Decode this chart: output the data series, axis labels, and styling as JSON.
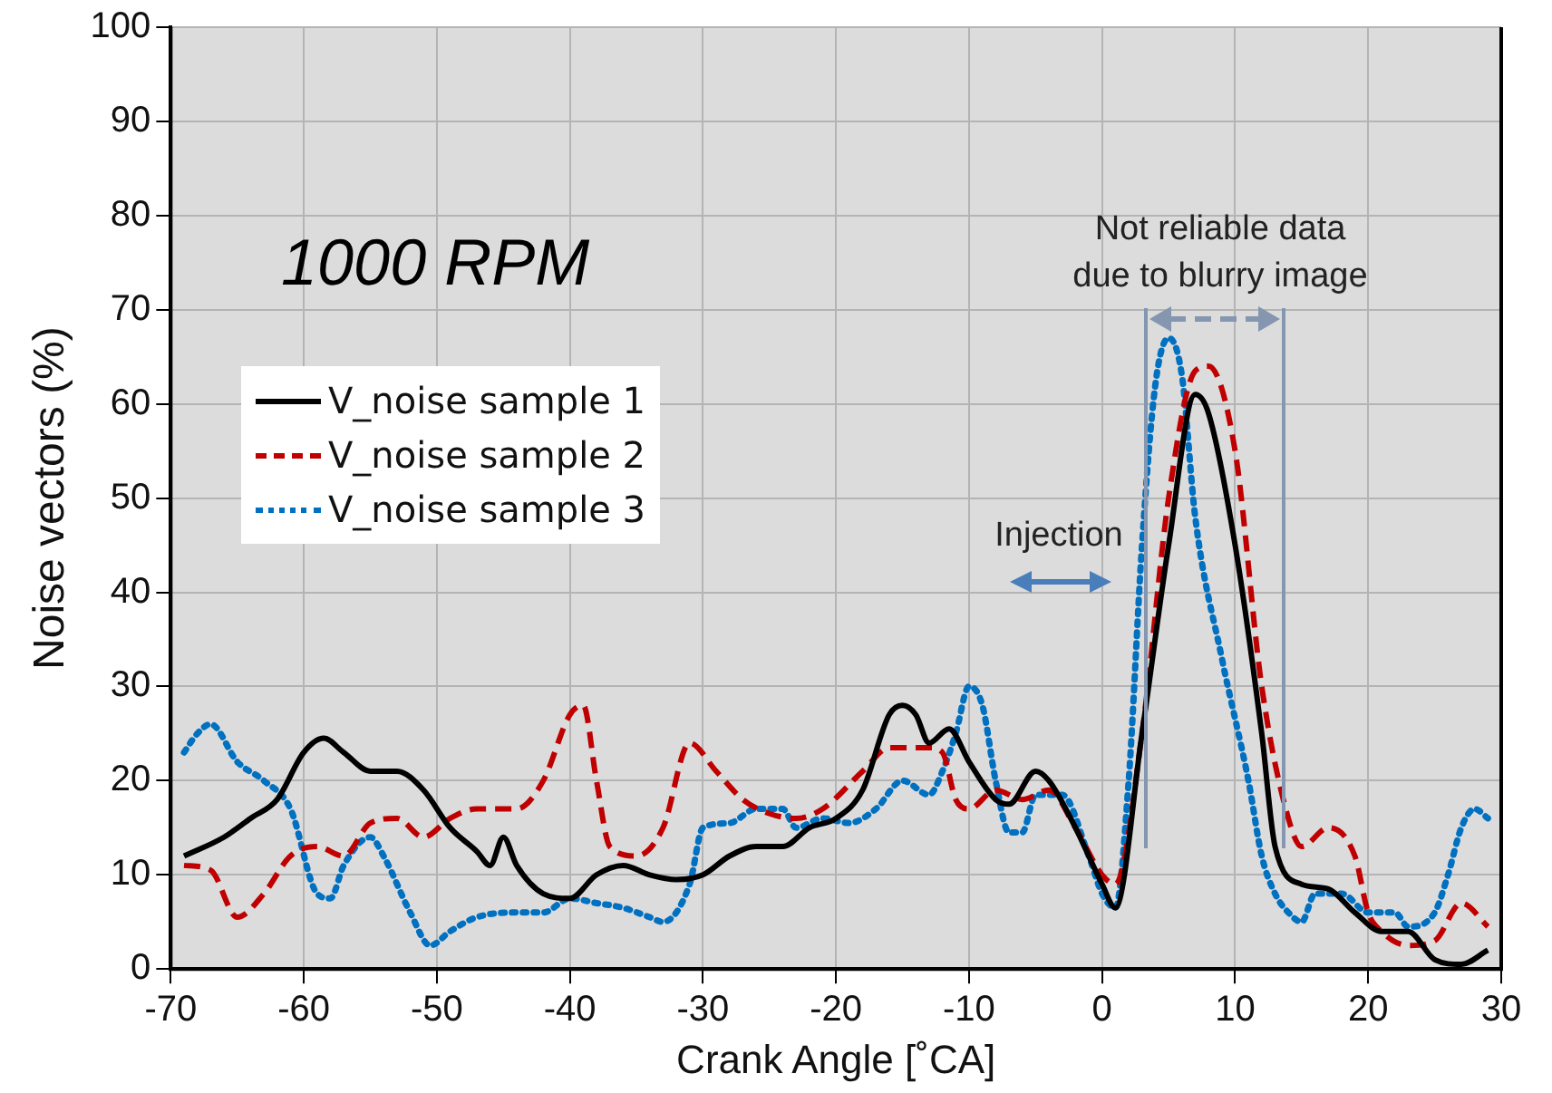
{
  "chart_data": {
    "type": "line",
    "xlabel": "Crank Angle [˚CA]",
    "ylabel": "Noise vectors (%)",
    "xlim": [
      -70,
      30
    ],
    "xticks": [
      -70,
      -60,
      -50,
      -40,
      -30,
      -20,
      -10,
      0,
      10,
      20,
      30
    ],
    "ylim": [
      0,
      100
    ],
    "yticks": [
      0,
      10,
      20,
      30,
      40,
      50,
      60,
      70,
      80,
      90,
      100
    ],
    "grid": true,
    "legend": "left",
    "marker": "none",
    "annotations": [
      "1000 RPM",
      "Injection",
      "Not reliable data\ndue to blurry image"
    ],
    "series": [
      {
        "name": "V_noise sample 1",
        "color": "#000000",
        "line_style": "solid",
        "x": [
          -69,
          -66,
          -64,
          -62,
          -60,
          -58.5,
          -57,
          -55,
          -53,
          -51,
          -49,
          -47,
          -46,
          -45,
          -44,
          -42,
          -40,
          -38,
          -36,
          -34,
          -32,
          -30,
          -28,
          -26,
          -24,
          -22,
          -20,
          -18,
          -16,
          -15,
          -14,
          -13,
          -11.5,
          -10,
          -8,
          -7,
          -5,
          -4,
          -2,
          0,
          1,
          3,
          5,
          7,
          8,
          10,
          12,
          13,
          15,
          17,
          19,
          21,
          23,
          25,
          27,
          29
        ],
        "values": [
          12,
          14,
          16,
          18,
          23,
          24.5,
          23,
          21,
          21,
          19,
          15,
          12.5,
          11,
          14,
          11,
          8,
          7.5,
          10,
          11,
          10,
          9.5,
          10,
          12,
          13,
          13,
          15,
          16,
          19,
          27,
          28,
          27,
          24,
          25.5,
          22,
          18,
          17.5,
          21,
          20,
          15,
          9,
          6.5,
          25,
          45,
          61,
          59,
          45,
          25,
          13,
          9,
          8.5,
          6,
          4,
          4,
          1,
          0.5,
          2
        ]
      },
      {
        "name": "V_noise sample 2",
        "color": "#c00000",
        "line_style": "dashed",
        "x": [
          -69,
          -67,
          -65,
          -63,
          -61,
          -59,
          -57,
          -55,
          -53,
          -51,
          -49,
          -47,
          -44,
          -42,
          -40,
          -39,
          -38,
          -37,
          -35,
          -33,
          -31,
          -29,
          -27,
          -25,
          -23,
          -21,
          -18,
          -16,
          -13,
          -12,
          -11,
          -10,
          -8,
          -6,
          -4,
          -2,
          0,
          1,
          3,
          5,
          7,
          8,
          10,
          12,
          14,
          15,
          17,
          19,
          20,
          21,
          23,
          25,
          27,
          29
        ],
        "values": [
          11,
          10.5,
          5.5,
          8,
          12,
          13,
          12,
          15.5,
          16,
          14,
          16,
          17,
          17,
          20,
          27,
          28,
          20,
          13,
          12,
          15,
          24,
          21,
          18,
          16.5,
          16,
          17,
          21,
          23.5,
          23.5,
          23,
          18,
          17,
          19,
          18,
          19,
          15,
          10,
          9,
          25,
          50,
          63.5,
          64,
          55,
          30,
          16,
          13,
          15,
          12,
          6,
          4,
          2.5,
          3,
          7,
          4.5
        ]
      },
      {
        "name": "V_noise sample 3",
        "color": "#0070c0",
        "line_style": "dotted",
        "x": [
          -69,
          -68,
          -67,
          -65,
          -63,
          -61,
          -59,
          -58,
          -57,
          -55,
          -54,
          -52,
          -50.5,
          -49,
          -47,
          -44,
          -42,
          -40,
          -38,
          -36,
          -34,
          -33,
          -31,
          -30,
          -28,
          -26,
          -24,
          -23,
          -21,
          -19,
          -17,
          -15,
          -13,
          -12,
          -11,
          -10,
          -9,
          -8,
          -7,
          -6,
          -5,
          -3,
          -1,
          0,
          1,
          2,
          3,
          4,
          5,
          6,
          7,
          9,
          11,
          12,
          13,
          14,
          15,
          16,
          18,
          20,
          22,
          23,
          25,
          26,
          27,
          28,
          29
        ],
        "values": [
          23,
          25,
          26,
          22,
          20,
          17,
          8,
          7.5,
          11,
          14,
          12,
          6,
          2.5,
          4,
          5.5,
          6,
          6,
          7.5,
          7,
          6.5,
          5.5,
          5,
          9,
          15,
          15.5,
          17,
          17,
          15,
          16,
          15.5,
          17,
          20,
          18.5,
          21,
          25,
          30,
          28,
          20,
          14.5,
          14.5,
          18.5,
          18.5,
          12,
          8,
          6.5,
          20,
          45,
          62,
          67,
          63,
          48,
          33,
          20,
          12,
          8,
          6,
          5,
          8,
          8,
          6,
          6,
          4.5,
          6,
          10,
          15,
          17,
          16
        ]
      }
    ]
  }
}
